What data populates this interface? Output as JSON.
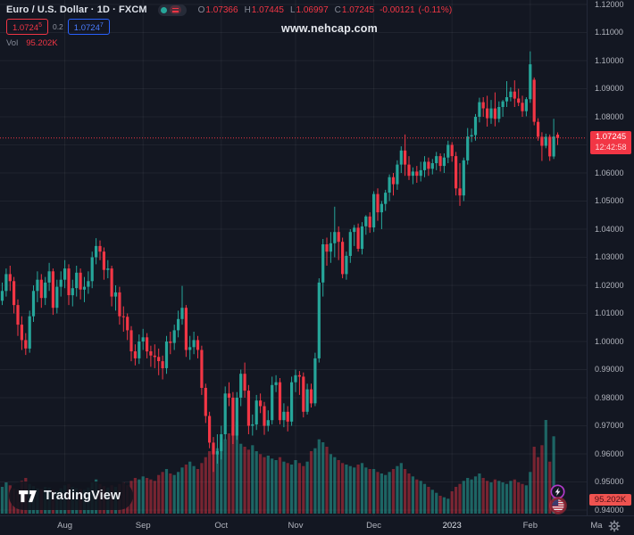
{
  "header": {
    "symbol_title": "Euro / U.S. Dollar · 1D · FXCM",
    "ohlc": {
      "o_label": "O",
      "o": "1.07366",
      "h_label": "H",
      "h": "1.07445",
      "l_label": "L",
      "l": "1.06997",
      "c_label": "C",
      "c": "1.07245",
      "change": "-0.00121",
      "change_pct": "(-0.11%)"
    },
    "sell_price": "1.0724",
    "sell_sup": "5",
    "spread": "0.2",
    "buy_price": "1.0724",
    "buy_sup": "7",
    "vol_label": "Vol",
    "vol_value": "95.202K"
  },
  "watermark": "www.nehcap.com",
  "price_axis": {
    "ticks": [
      "1.12000",
      "1.11000",
      "1.10000",
      "1.09000",
      "1.08000",
      "1.06000",
      "1.05000",
      "1.04000",
      "1.03000",
      "1.02000",
      "1.01000",
      "1.00000",
      "0.99000",
      "0.98000",
      "0.97000",
      "0.96000",
      "0.95000",
      "0.94000"
    ],
    "last_price": "1.07245",
    "countdown": "12:42:58",
    "last_volume": "95.202K"
  },
  "time_axis": {
    "labels": [
      [
        "Aug",
        16
      ],
      [
        "Sep",
        36
      ],
      [
        "Oct",
        56
      ],
      [
        "Nov",
        75
      ],
      [
        "Dec",
        95
      ],
      [
        "2023",
        115
      ],
      [
        "Feb",
        135
      ]
    ],
    "year_label": "2023",
    "partial_month": "Ma"
  },
  "attribution": {
    "text": "TradingView"
  },
  "colors": {
    "up": "#26a69a",
    "down": "#f23645",
    "vol_up": "rgba(38,166,154,0.55)",
    "vol_down": "rgba(242,54,69,0.45)",
    "grid": "rgba(255,255,255,0.055)",
    "bg": "#131722",
    "axis_text": "#b2b5be",
    "buy_blue": "#2962ff"
  },
  "chart_data": {
    "type": "candlestick+volume",
    "symbol": "EUR/USD",
    "timeframe": "1D",
    "exchange": "FXCM",
    "title": "Euro / U.S. Dollar",
    "y_range": [
      0.94,
      1.12
    ],
    "price_grid_step": 0.01,
    "x_axis_months": [
      "Aug",
      "Sep",
      "Oct",
      "Nov",
      "Dec",
      "2023",
      "Feb"
    ],
    "last_close": 1.07245,
    "last_change": -0.00121,
    "last_change_pct": -0.11,
    "last_volume_k": 95.202,
    "candles_format": [
      "open",
      "high",
      "low",
      "close",
      "volume_k"
    ],
    "candles": [
      [
        1.0145,
        1.021,
        1.013,
        1.018,
        180
      ],
      [
        1.018,
        1.026,
        1.016,
        1.024,
        210
      ],
      [
        1.024,
        1.027,
        1.018,
        1.0215,
        190
      ],
      [
        1.0215,
        1.023,
        1.01,
        1.013,
        170
      ],
      [
        1.013,
        1.015,
        1.002,
        1.006,
        160
      ],
      [
        1.006,
        1.009,
        0.997,
        1.0005,
        220
      ],
      [
        1.0005,
        1.003,
        0.9952,
        0.9975,
        240
      ],
      [
        0.9975,
        1.011,
        0.996,
        1.009,
        200
      ],
      [
        1.009,
        1.02,
        1.007,
        1.018,
        185
      ],
      [
        1.018,
        1.025,
        1.014,
        1.022,
        170
      ],
      [
        1.022,
        1.024,
        1.012,
        1.0155,
        165
      ],
      [
        1.0155,
        1.023,
        1.013,
        1.021,
        180
      ],
      [
        1.021,
        1.028,
        1.018,
        1.025,
        175
      ],
      [
        1.025,
        1.026,
        1.0095,
        1.012,
        160
      ],
      [
        1.012,
        1.022,
        1.01,
        1.0195,
        150
      ],
      [
        1.0195,
        1.025,
        1.016,
        1.022,
        170
      ],
      [
        1.022,
        1.029,
        1.019,
        1.026,
        190
      ],
      [
        1.026,
        1.0275,
        1.013,
        1.0165,
        200
      ],
      [
        1.0165,
        1.022,
        1.0125,
        1.019,
        180
      ],
      [
        1.019,
        1.027,
        1.016,
        1.0245,
        170
      ],
      [
        1.0245,
        1.026,
        1.015,
        1.0185,
        165
      ],
      [
        1.0185,
        1.023,
        1.014,
        1.0195,
        160
      ],
      [
        1.0195,
        1.025,
        1.017,
        1.0215,
        175
      ],
      [
        1.0215,
        1.032,
        1.019,
        1.03,
        210
      ],
      [
        1.03,
        1.0368,
        1.0275,
        1.034,
        230
      ],
      [
        1.034,
        1.036,
        1.029,
        1.032,
        200
      ],
      [
        1.032,
        1.0335,
        1.022,
        1.0255,
        185
      ],
      [
        1.0255,
        1.029,
        1.0225,
        1.026,
        175
      ],
      [
        1.026,
        1.027,
        1.0125,
        1.016,
        190
      ],
      [
        1.016,
        1.02,
        1.011,
        1.0175,
        180
      ],
      [
        1.0175,
        1.0195,
        1.006,
        1.009,
        200
      ],
      [
        1.009,
        1.0125,
        1.0035,
        1.0088,
        210
      ],
      [
        1.0088,
        1.01,
        1.0005,
        1.004,
        190
      ],
      [
        1.004,
        1.0055,
        0.993,
        0.9965,
        220
      ],
      [
        0.9965,
        0.999,
        0.9915,
        0.994,
        240
      ],
      [
        0.994,
        1.0025,
        0.992,
        1.0,
        230
      ],
      [
        1.0,
        1.0045,
        0.997,
        1.0015,
        250
      ],
      [
        1.0015,
        1.003,
        0.994,
        0.9965,
        240
      ],
      [
        0.9965,
        0.9985,
        0.991,
        0.995,
        230
      ],
      [
        0.995,
        0.999,
        0.9905,
        0.9945,
        220
      ],
      [
        0.9945,
        0.9975,
        0.988,
        0.993,
        260
      ],
      [
        0.993,
        0.995,
        0.9865,
        0.9905,
        280
      ],
      [
        0.9905,
        1.002,
        0.9885,
        1.0,
        300
      ],
      [
        1.0,
        1.0035,
        0.9955,
        0.9995,
        270
      ],
      [
        0.9995,
        1.006,
        0.997,
        1.004,
        260
      ],
      [
        1.004,
        1.011,
        1.0015,
        1.008,
        280
      ],
      [
        1.008,
        1.0198,
        1.006,
        1.012,
        310
      ],
      [
        1.012,
        1.013,
        0.9945,
        0.997,
        330
      ],
      [
        0.997,
        1.002,
        0.9935,
        0.998,
        350
      ],
      [
        0.998,
        1.0035,
        0.9955,
        1.0005,
        320
      ],
      [
        1.0005,
        1.002,
        0.994,
        0.997,
        300
      ],
      [
        0.997,
        0.9985,
        0.981,
        0.9835,
        340
      ],
      [
        0.9835,
        0.985,
        0.971,
        0.9735,
        380
      ],
      [
        0.9735,
        0.975,
        0.962,
        0.964,
        420
      ],
      [
        0.964,
        0.966,
        0.9536,
        0.9598,
        460
      ],
      [
        0.9598,
        0.967,
        0.9565,
        0.961,
        440
      ],
      [
        0.961,
        0.97,
        0.958,
        0.967,
        480
      ],
      [
        0.967,
        0.984,
        0.965,
        0.9815,
        500
      ],
      [
        0.9815,
        0.9855,
        0.977,
        0.98,
        540
      ],
      [
        0.98,
        0.982,
        0.9635,
        0.9665,
        580
      ],
      [
        0.9665,
        0.982,
        0.965,
        0.98,
        620
      ],
      [
        0.98,
        0.99,
        0.977,
        0.9885,
        470
      ],
      [
        0.9885,
        0.9925,
        0.98,
        0.9825,
        450
      ],
      [
        0.9825,
        0.9845,
        0.967,
        0.97,
        430
      ],
      [
        0.97,
        0.974,
        0.9665,
        0.9705,
        460
      ],
      [
        0.9705,
        0.981,
        0.9685,
        0.979,
        420
      ],
      [
        0.979,
        0.9815,
        0.9745,
        0.977,
        400
      ],
      [
        0.977,
        0.9785,
        0.9668,
        0.97,
        380
      ],
      [
        0.97,
        0.9755,
        0.968,
        0.972,
        390
      ],
      [
        0.972,
        0.9875,
        0.9705,
        0.9845,
        370
      ],
      [
        0.9845,
        0.988,
        0.982,
        0.9855,
        360
      ],
      [
        0.9855,
        0.987,
        0.9705,
        0.972,
        380
      ],
      [
        0.972,
        0.978,
        0.9695,
        0.975,
        350
      ],
      [
        0.975,
        0.977,
        0.968,
        0.9715,
        340
      ],
      [
        0.9715,
        0.9875,
        0.97,
        0.9855,
        330
      ],
      [
        0.9855,
        0.99,
        0.982,
        0.988,
        360
      ],
      [
        0.988,
        0.9895,
        0.981,
        0.9875,
        340
      ],
      [
        0.9875,
        0.989,
        0.973,
        0.975,
        320
      ],
      [
        0.975,
        0.985,
        0.974,
        0.983,
        350
      ],
      [
        0.983,
        0.985,
        0.9765,
        0.978,
        420
      ],
      [
        0.978,
        0.996,
        0.977,
        0.994,
        440
      ],
      [
        0.994,
        1.0225,
        0.9925,
        1.021,
        500
      ],
      [
        1.021,
        1.0365,
        1.016,
        1.0346,
        480
      ],
      [
        1.0346,
        1.037,
        1.027,
        1.032,
        450
      ],
      [
        1.032,
        1.039,
        1.028,
        1.035,
        400
      ],
      [
        1.035,
        1.048,
        1.03,
        1.039,
        380
      ],
      [
        1.039,
        1.041,
        1.029,
        1.0355,
        360
      ],
      [
        1.0355,
        1.037,
        1.0225,
        1.024,
        340
      ],
      [
        1.024,
        1.032,
        1.022,
        1.0305,
        330
      ],
      [
        1.0305,
        1.04,
        1.028,
        1.039,
        320
      ],
      [
        1.039,
        1.0415,
        1.034,
        1.0405,
        310
      ],
      [
        1.0405,
        1.042,
        1.032,
        1.033,
        330
      ],
      [
        1.033,
        1.0425,
        1.031,
        1.041,
        340
      ],
      [
        1.041,
        1.045,
        1.038,
        1.0445,
        310
      ],
      [
        1.0445,
        1.046,
        1.0387,
        1.0406,
        300
      ],
      [
        1.0406,
        1.0535,
        1.039,
        1.0525,
        300
      ],
      [
        1.0525,
        1.0545,
        1.043,
        1.046,
        280
      ],
      [
        1.046,
        1.05,
        1.04,
        1.049,
        270
      ],
      [
        1.049,
        1.054,
        1.0465,
        1.053,
        260
      ],
      [
        1.053,
        1.0595,
        1.05,
        1.0585,
        280
      ],
      [
        1.0585,
        1.06,
        1.052,
        1.056,
        300
      ],
      [
        1.056,
        1.0645,
        1.054,
        1.063,
        320
      ],
      [
        1.063,
        1.0695,
        1.06,
        1.068,
        340
      ],
      [
        1.068,
        1.0737,
        1.059,
        1.063,
        300
      ],
      [
        1.063,
        1.066,
        1.0575,
        1.059,
        270
      ],
      [
        1.059,
        1.062,
        1.056,
        1.0605,
        250
      ],
      [
        1.0605,
        1.0625,
        1.0565,
        1.059,
        230
      ],
      [
        1.059,
        1.064,
        1.057,
        1.061,
        220
      ],
      [
        1.061,
        1.066,
        1.0585,
        1.064,
        200
      ],
      [
        1.064,
        1.0655,
        1.059,
        1.0615,
        180
      ],
      [
        1.0615,
        1.065,
        1.0595,
        1.0635,
        160
      ],
      [
        1.0635,
        1.0675,
        1.061,
        1.066,
        140
      ],
      [
        1.066,
        1.067,
        1.0605,
        1.0625,
        120
      ],
      [
        1.0625,
        1.067,
        1.06,
        1.0655,
        110
      ],
      [
        1.0655,
        1.0715,
        1.0635,
        1.07,
        100
      ],
      [
        1.07,
        1.071,
        1.064,
        1.066,
        150
      ],
      [
        1.066,
        1.0675,
        1.052,
        1.0545,
        180
      ],
      [
        1.0545,
        1.0635,
        1.0483,
        1.052,
        200
      ],
      [
        1.052,
        1.0655,
        1.05,
        1.0645,
        220
      ],
      [
        1.0645,
        1.076,
        1.063,
        1.073,
        240
      ],
      [
        1.073,
        1.0758,
        1.071,
        1.0735,
        230
      ],
      [
        1.0735,
        1.081,
        1.0715,
        1.08,
        250
      ],
      [
        1.08,
        1.0868,
        1.078,
        1.0852,
        270
      ],
      [
        1.0852,
        1.087,
        1.08,
        1.083,
        240
      ],
      [
        1.083,
        1.0875,
        1.0765,
        1.0795,
        220
      ],
      [
        1.0795,
        1.086,
        1.0775,
        1.083,
        210
      ],
      [
        1.083,
        1.0887,
        1.0766,
        1.0793,
        230
      ],
      [
        1.0793,
        1.0855,
        1.078,
        1.0835,
        220
      ],
      [
        1.0835,
        1.086,
        1.08,
        1.0855,
        210
      ],
      [
        1.0855,
        1.0927,
        1.0835,
        1.087,
        200
      ],
      [
        1.087,
        1.0905,
        1.0855,
        1.089,
        220
      ],
      [
        1.089,
        1.093,
        1.0835,
        1.0865,
        230
      ],
      [
        1.0865,
        1.09,
        1.0838,
        1.085,
        210
      ],
      [
        1.085,
        1.0875,
        1.08,
        1.082,
        200
      ],
      [
        1.082,
        1.087,
        1.0802,
        1.0863,
        190
      ],
      [
        1.0863,
        1.1033,
        1.085,
        1.0987,
        280
      ],
      [
        1.0932,
        1.094,
        1.077,
        1.0782,
        450
      ],
      [
        1.0782,
        1.0795,
        1.0715,
        1.0729,
        380
      ],
      [
        1.0729,
        1.0745,
        1.0643,
        1.0697,
        460
      ],
      [
        1.0697,
        1.074,
        1.0688,
        1.0729,
        630
      ],
      [
        1.0729,
        1.0737,
        1.0643,
        1.0659,
        350
      ],
      [
        1.0659,
        1.0793,
        1.065,
        1.073,
        520
      ],
      [
        1.07366,
        1.07445,
        1.06997,
        1.07245,
        95.202
      ]
    ]
  }
}
